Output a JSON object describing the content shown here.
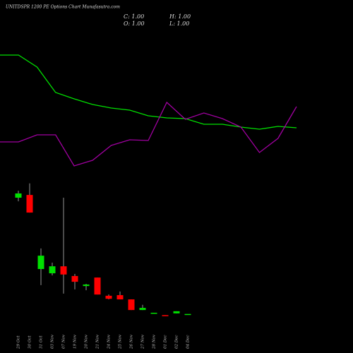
{
  "chart_data": [
    {
      "type": "candlestick",
      "title": "UNITDSPR 1200 PE Options Chart Munafasutra.com",
      "ohlc_labels": [
        "C: 1.00",
        "H: 1.00",
        "O: 1.00",
        "L: 1.00"
      ],
      "categories": [
        "29 Oct",
        "30 Oct",
        "31 Oct",
        "03 Nov",
        "07 Nov",
        "19 Nov",
        "20 Nov",
        "21 Nov",
        "24 Nov",
        "25 Nov",
        "26 Nov",
        "27 Nov",
        "28 Nov",
        "01 Dec",
        "02 Dec",
        "04 Dec"
      ],
      "open": [
        39.3,
        40.2,
        15.8,
        14.4,
        16.7,
        13.5,
        10.2,
        13.0,
        7.0,
        7.2,
        5.8,
        2.3,
        1.3,
        0.6,
        1.2,
        1.0
      ],
      "high": [
        41.6,
        44.0,
        22.6,
        17.9,
        39.3,
        14.2,
        10.9,
        13.0,
        7.4,
        8.4,
        5.8,
        4.0,
        1.4,
        0.6,
        1.9,
        1.0
      ],
      "low": [
        38.1,
        34.4,
        10.5,
        13.7,
        7.7,
        9.1,
        8.8,
        7.4,
        5.8,
        5.8,
        2.3,
        2.3,
        1.3,
        0.4,
        1.2,
        1.0
      ],
      "close": [
        40.7,
        34.4,
        20.2,
        16.7,
        14.0,
        11.6,
        10.7,
        7.4,
        6.0,
        5.8,
        2.3,
        3.0,
        1.4,
        0.4,
        1.9,
        1.0
      ],
      "up_color": "#00e000",
      "down_color": "#ff0000",
      "ylim": [
        0,
        45
      ]
    },
    {
      "type": "line",
      "x": [
        0,
        1,
        2,
        3,
        4,
        5,
        6,
        7,
        8,
        9,
        10,
        11,
        12,
        13,
        14,
        15,
        16
      ],
      "xlim": [
        0,
        16
      ],
      "ylim": [
        0,
        180
      ],
      "series": [
        {
          "color": "#00e000",
          "values": [
            172,
            172,
            155,
            119,
            110,
            102,
            97,
            94,
            86,
            83,
            82,
            74,
            74,
            70,
            67,
            71,
            69
          ]
        },
        {
          "color": "#a000a0",
          "values": [
            49,
            49,
            59,
            59,
            15,
            23,
            44,
            52,
            51,
            105,
            81,
            90,
            82,
            70,
            34,
            54,
            99
          ]
        }
      ]
    }
  ]
}
